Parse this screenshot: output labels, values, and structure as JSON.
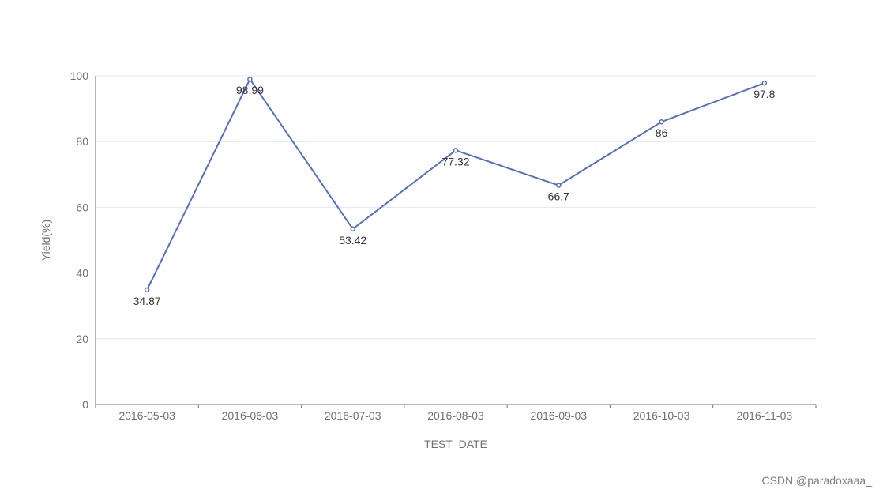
{
  "chart_data": {
    "type": "line",
    "categories": [
      "2016-05-03",
      "2016-06-03",
      "2016-07-03",
      "2016-08-03",
      "2016-09-03",
      "2016-10-03",
      "2016-11-03"
    ],
    "series": [
      {
        "values": [
          34.87,
          98.99,
          53.42,
          77.32,
          66.7,
          86,
          97.8
        ]
      }
    ],
    "data_labels": [
      "34.87",
      "98.99",
      "53.42",
      "77.32",
      "66.7",
      "86",
      "97.8"
    ],
    "xlabel": "TEST_DATE",
    "ylabel": "Yield(%)",
    "ylim": [
      0,
      100
    ],
    "yticks": [
      0,
      20,
      40,
      60,
      80,
      100
    ],
    "ytick_labels": [
      "0",
      "20",
      "40",
      "60",
      "80",
      "100"
    ],
    "grid": true,
    "line_color": "#5470c6",
    "grid_color": "#e0e6f1",
    "axis_color": "#6e7079"
  },
  "watermark": "CSDN @paradoxaaa_"
}
